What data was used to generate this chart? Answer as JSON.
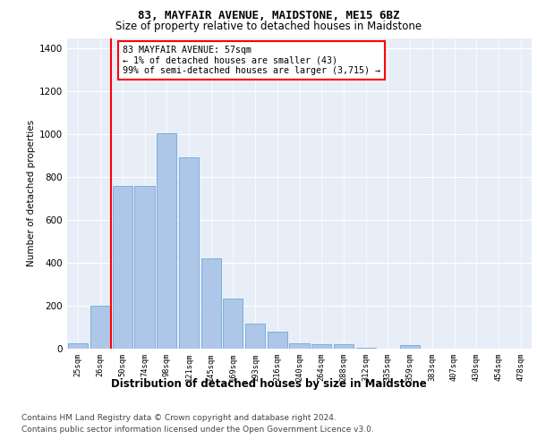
{
  "title": "83, MAYFAIR AVENUE, MAIDSTONE, ME15 6BZ",
  "subtitle": "Size of property relative to detached houses in Maidstone",
  "xlabel": "Distribution of detached houses by size in Maidstone",
  "ylabel": "Number of detached properties",
  "bar_labels": [
    "25sqm",
    "26sqm",
    "50sqm",
    "74sqm",
    "98sqm",
    "121sqm",
    "145sqm",
    "169sqm",
    "193sqm",
    "216sqm",
    "240sqm",
    "264sqm",
    "288sqm",
    "312sqm",
    "335sqm",
    "359sqm",
    "383sqm",
    "407sqm",
    "430sqm",
    "454sqm",
    "478sqm"
  ],
  "bar_values": [
    25,
    200,
    760,
    760,
    1005,
    895,
    420,
    235,
    115,
    80,
    25,
    20,
    20,
    5,
    0,
    15,
    0,
    0,
    0,
    0,
    0
  ],
  "bar_color": "#aec6e8",
  "bar_edgecolor": "#5a9fd4",
  "vline_color": "red",
  "vline_x": 1.5,
  "annotation_text": "83 MAYFAIR AVENUE: 57sqm\n← 1% of detached houses are smaller (43)\n99% of semi-detached houses are larger (3,715) →",
  "ylim": [
    0,
    1450
  ],
  "yticks": [
    0,
    200,
    400,
    600,
    800,
    1000,
    1200,
    1400
  ],
  "footer1": "Contains HM Land Registry data © Crown copyright and database right 2024.",
  "footer2": "Contains public sector information licensed under the Open Government Licence v3.0.",
  "bg_color": "#e8eef7"
}
